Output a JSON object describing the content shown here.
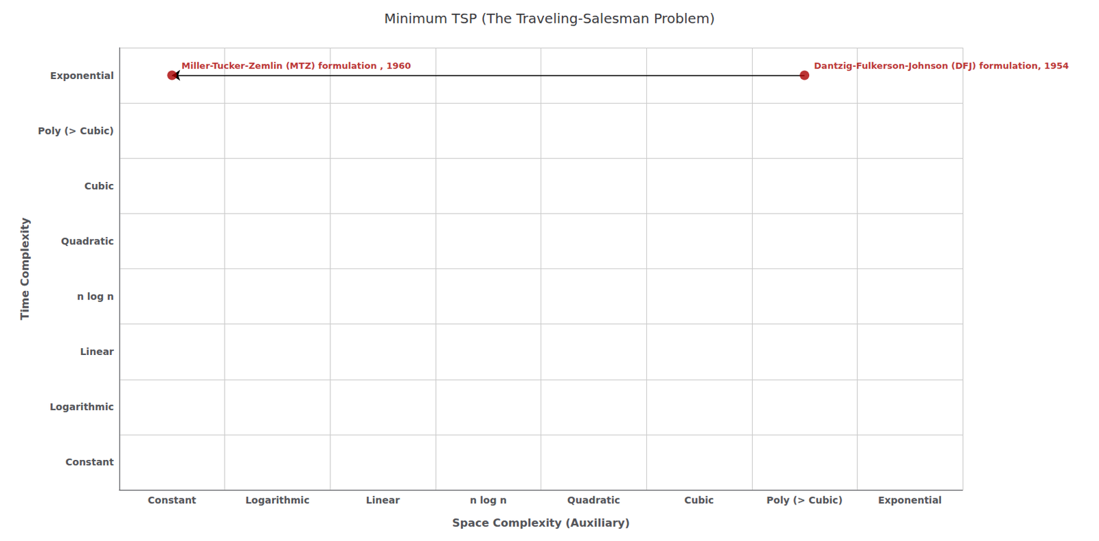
{
  "chart_data": {
    "type": "scatter",
    "title": "Minimum TSP (The Traveling-Salesman Problem)",
    "x_label": "Space Complexity (Auxiliary)",
    "y_label": "Time Complexity",
    "x_categories": [
      "Constant",
      "Logarithmic",
      "Linear",
      "n log n",
      "Quadratic",
      "Cubic",
      "Poly (> Cubic)",
      "Exponential"
    ],
    "y_categories": [
      "Constant",
      "Logarithmic",
      "Linear",
      "n log n",
      "Quadratic",
      "Cubic",
      "Poly (> Cubic)",
      "Exponential"
    ],
    "points": [
      {
        "x": "Constant",
        "y": "Exponential",
        "label": "Miller-Tucker-Zemlin (MTZ) formulation , 1960",
        "color": "#aa0000"
      },
      {
        "x": "Poly (> Cubic)",
        "y": "Exponential",
        "label": "Dantzig-Fulkerson-Johnson (DFJ) formulation, 1954",
        "color": "#aa0000"
      }
    ],
    "arrow": {
      "from": {
        "x": "Poly (> Cubic)",
        "y": "Exponential"
      },
      "to": {
        "x": "Constant",
        "y": "Exponential"
      }
    },
    "grid": true
  }
}
